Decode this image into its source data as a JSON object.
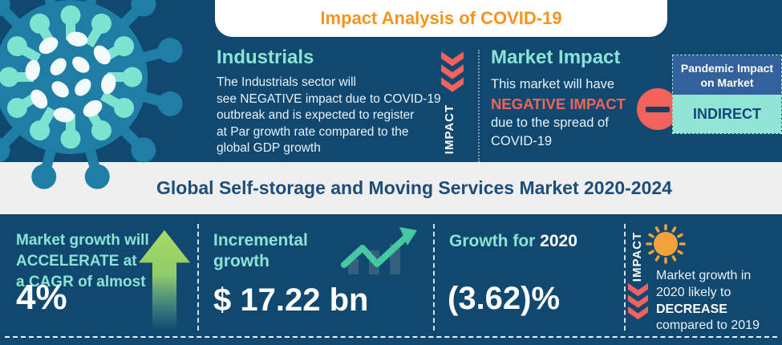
{
  "colors": {
    "background_navy": "#11486F",
    "band_gray": "#F0EFEF",
    "accent_teal": "#8BE3D6",
    "accent_coral": "#F4625D",
    "accent_orange": "#F7941D",
    "panel_blue": "#33619B",
    "panel_mint": "#92E5D4",
    "arrow_green": "#A8DA65",
    "chart_green": "#45C9A0",
    "title_navy": "#1D4E7B"
  },
  "header": {
    "title": "Impact Analysis of COVID-19"
  },
  "top": {
    "industrials": {
      "heading": "Industrials",
      "body_lines": [
        "The Industrials sector will",
        "see NEGATIVE impact due to COVID-19",
        "outbreak and is expected to register",
        "at Par growth rate compared to the",
        "global GDP growth"
      ],
      "impact_label": "IMPACT"
    },
    "market_impact": {
      "heading": "Market Impact",
      "line1": "This market will have",
      "highlight": "NEGATIVE IMPACT",
      "line2": "due to the spread of",
      "line3": "COVID-19"
    },
    "pandemic_panel": {
      "header_line1": "Pandemic Impact",
      "header_line2": "on Market",
      "value": "INDIRECT"
    }
  },
  "market_title": "Global Self-storage and Moving Services Market 2020-2024",
  "bottom": {
    "cagr": {
      "line1": "Market growth will",
      "line2": "ACCELERATE at",
      "line3": "a CAGR of almost",
      "value": "4%"
    },
    "incremental": {
      "line1": "Incremental",
      "line2": "growth",
      "value": "$ 17.22 bn"
    },
    "growth2020": {
      "label_teal": "Growth for",
      "label_white": "2020",
      "value": "(3.62)%"
    },
    "outlook": {
      "impact_label": "IMPACT",
      "line1": "Market growth in",
      "line2": "2020 likely to",
      "bold": "DECREASE",
      "line3": "compared to 2019"
    }
  }
}
